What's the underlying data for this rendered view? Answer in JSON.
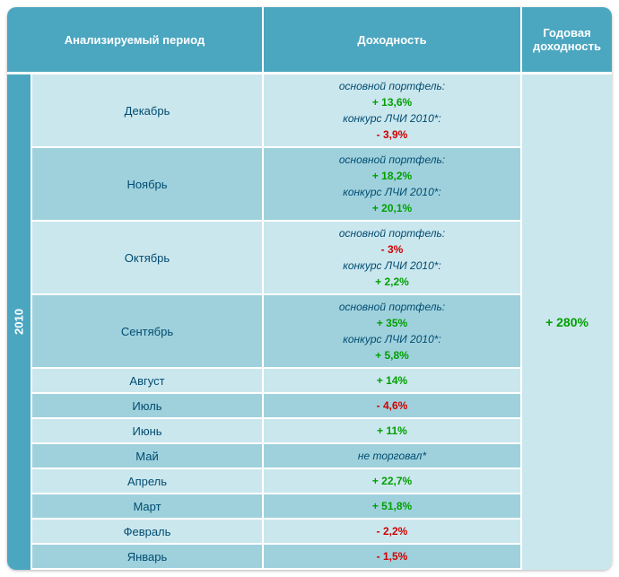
{
  "headers": {
    "period": "Анализируемый период",
    "return": "Доходность",
    "annual": "Годовая доходность"
  },
  "year": "2010",
  "annual_return": "+ 280%",
  "colors": {
    "header_bg": "#4ba6c0",
    "header_text": "#ffffff",
    "row_alt0": "#cbe7ee",
    "row_alt1": "#9fd1dd",
    "positive": "#00a000",
    "negative": "#d00000",
    "text": "#004c70",
    "divider": "#ffffff"
  },
  "rows": [
    {
      "month": "Декабрь",
      "alt": 0,
      "lines": [
        {
          "text": "основной портфель:",
          "kind": "label"
        },
        {
          "text": "+ 13,6%",
          "kind": "pos"
        },
        {
          "text": "конкурс ЛЧИ 2010*:",
          "kind": "label"
        },
        {
          "text": "- 3,9%",
          "kind": "neg"
        }
      ]
    },
    {
      "month": "Ноябрь",
      "alt": 1,
      "lines": [
        {
          "text": "основной портфель:",
          "kind": "label"
        },
        {
          "text": "+ 18,2%",
          "kind": "pos"
        },
        {
          "text": "конкурс ЛЧИ 2010*:",
          "kind": "label"
        },
        {
          "text": "+ 20,1%",
          "kind": "pos"
        }
      ]
    },
    {
      "month": "Октябрь",
      "alt": 0,
      "lines": [
        {
          "text": "основной портфель:",
          "kind": "label"
        },
        {
          "text": "- 3%",
          "kind": "neg"
        },
        {
          "text": "конкурс ЛЧИ 2010*:",
          "kind": "label"
        },
        {
          "text": "+ 2,2%",
          "kind": "pos"
        }
      ]
    },
    {
      "month": "Сентябрь",
      "alt": 1,
      "lines": [
        {
          "text": "основной портфель:",
          "kind": "label"
        },
        {
          "text": "+ 35%",
          "kind": "pos"
        },
        {
          "text": "конкурс ЛЧИ 2010*:",
          "kind": "label"
        },
        {
          "text": "+ 5,8%",
          "kind": "pos"
        }
      ]
    },
    {
      "month": "Август",
      "alt": 0,
      "lines": [
        {
          "text": "+ 14%",
          "kind": "pos"
        }
      ]
    },
    {
      "month": "Июль",
      "alt": 1,
      "lines": [
        {
          "text": "- 4,6%",
          "kind": "neg"
        }
      ]
    },
    {
      "month": "Июнь",
      "alt": 0,
      "lines": [
        {
          "text": "+ 11%",
          "kind": "pos"
        }
      ]
    },
    {
      "month": "Май",
      "alt": 1,
      "lines": [
        {
          "text": "не торговал*",
          "kind": "info"
        }
      ]
    },
    {
      "month": "Апрель",
      "alt": 0,
      "lines": [
        {
          "text": "+ 22,7%",
          "kind": "pos"
        }
      ]
    },
    {
      "month": "Март",
      "alt": 1,
      "lines": [
        {
          "text": "+ 51,8%",
          "kind": "pos"
        }
      ]
    },
    {
      "month": "Февраль",
      "alt": 0,
      "lines": [
        {
          "text": "- 2,2%",
          "kind": "neg"
        }
      ]
    },
    {
      "month": "Январь",
      "alt": 1,
      "lines": [
        {
          "text": "- 1,5%",
          "kind": "neg"
        }
      ]
    }
  ]
}
